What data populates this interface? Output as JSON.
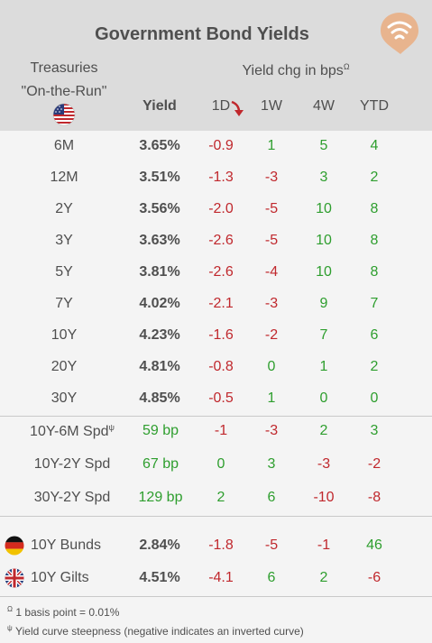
{
  "header": {
    "title": "Government Bond Yields",
    "treasuries_line1": "Treasuries",
    "treasuries_line2": "\"On-the-Run\"",
    "yield_chg_label": "Yield chg in bps",
    "yield_chg_sup": "Ω",
    "col_yield": "Yield",
    "col_1d": "1D",
    "col_1w": "1W",
    "col_4w": "4W",
    "col_ytd": "YTD"
  },
  "treasuries": [
    {
      "label": "6M",
      "yield": "3.65%",
      "d1": "-0.9",
      "w1": "1",
      "w4": "5",
      "ytd": "4"
    },
    {
      "label": "12M",
      "yield": "3.51%",
      "d1": "-1.3",
      "w1": "-3",
      "w4": "3",
      "ytd": "2"
    },
    {
      "label": "2Y",
      "yield": "3.56%",
      "d1": "-2.0",
      "w1": "-5",
      "w4": "10",
      "ytd": "8"
    },
    {
      "label": "3Y",
      "yield": "3.63%",
      "d1": "-2.6",
      "w1": "-5",
      "w4": "10",
      "ytd": "8"
    },
    {
      "label": "5Y",
      "yield": "3.81%",
      "d1": "-2.6",
      "w1": "-4",
      "w4": "10",
      "ytd": "8"
    },
    {
      "label": "7Y",
      "yield": "4.02%",
      "d1": "-2.1",
      "w1": "-3",
      "w4": "9",
      "ytd": "7"
    },
    {
      "label": "10Y",
      "yield": "4.23%",
      "d1": "-1.6",
      "w1": "-2",
      "w4": "7",
      "ytd": "6"
    },
    {
      "label": "20Y",
      "yield": "4.81%",
      "d1": "-0.8",
      "w1": "0",
      "w4": "1",
      "ytd": "2"
    },
    {
      "label": "30Y",
      "yield": "4.85%",
      "d1": "-0.5",
      "w1": "1",
      "w4": "0",
      "ytd": "0"
    }
  ],
  "spreads": [
    {
      "label": "10Y-6M Spd",
      "sup": "ψ",
      "value": "59 bp",
      "d1": "-1",
      "w1": "-3",
      "w4": "2",
      "ytd": "3"
    },
    {
      "label": "10Y-2Y Spd",
      "sup": "",
      "value": "67 bp",
      "d1": "0",
      "w1": "3",
      "w4": "-3",
      "ytd": "-2"
    },
    {
      "label": "30Y-2Y Spd",
      "sup": "",
      "value": "129 bp",
      "d1": "2",
      "w1": "6",
      "w4": "-10",
      "ytd": "-8"
    }
  ],
  "international": [
    {
      "label": "10Y Bunds",
      "flag": "germany-flag",
      "yield": "2.84%",
      "d1": "-1.8",
      "w1": "-5",
      "w4": "-1",
      "ytd": "46"
    },
    {
      "label": "10Y Gilts",
      "flag": "uk-flag",
      "yield": "4.51%",
      "d1": "-4.1",
      "w1": "6",
      "w4": "2",
      "ytd": "-6"
    }
  ],
  "footnotes": {
    "omega_sym": "Ω",
    "omega_text": "1 basis point = 0.01%",
    "psi_sym": "ψ",
    "psi_text": "Yield curve steepness (negative indicates an inverted curve)"
  },
  "colors": {
    "positive": "#2e9e2e",
    "negative": "#c0282d",
    "header_bg": "#dcdcdc",
    "logo": "#e8b48e"
  }
}
